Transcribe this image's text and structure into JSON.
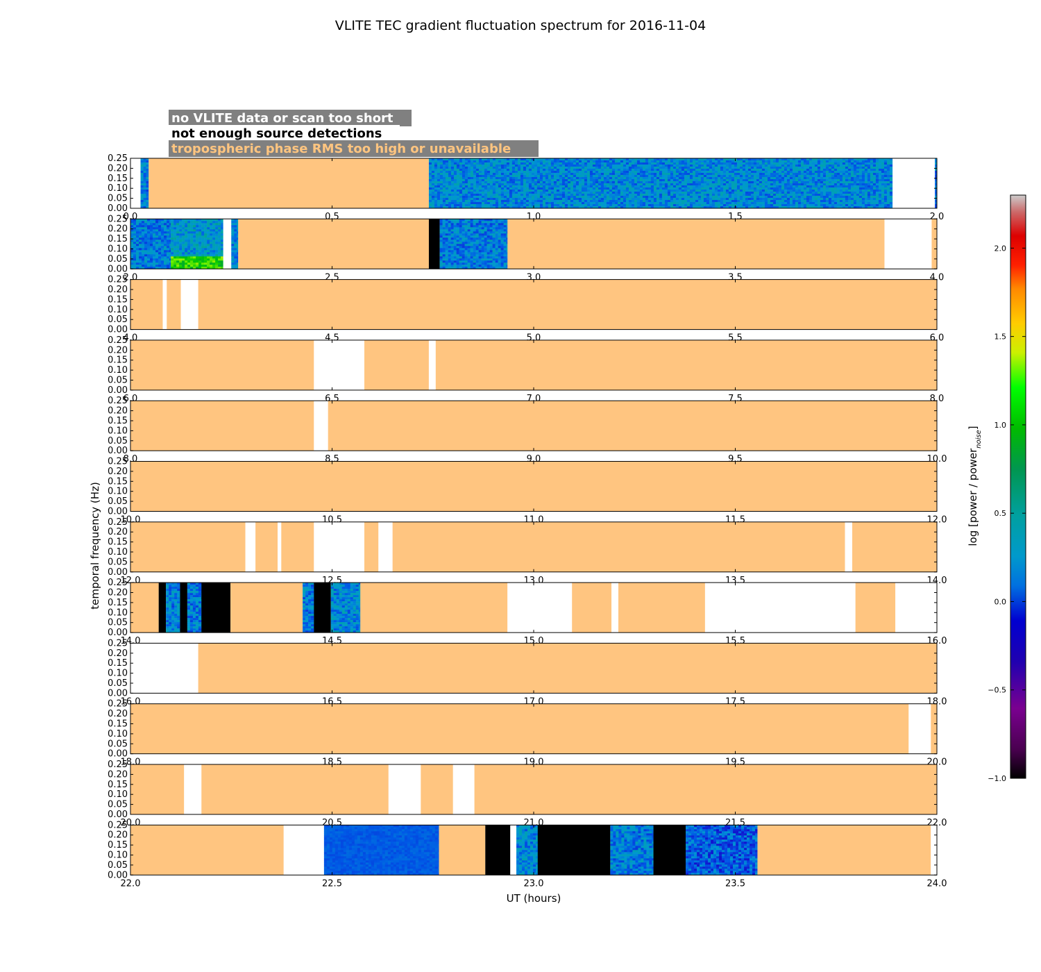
{
  "chart_data": {
    "type": "heatmap",
    "title": "VLITE TEC gradient fluctuation spectrum for 2016-11-04",
    "xlabel": "UT (hours)",
    "ylabel": "temporal frequency (Hz)",
    "ylim": [
      0,
      0.25
    ],
    "yticks": [
      "0.00",
      "0.05",
      "0.10",
      "0.15",
      "0.20",
      "0.25"
    ],
    "colorbar": {
      "label_main": "log [power / power",
      "label_sub": "noise",
      "label_end": "]",
      "range": [
        -1.0,
        2.3
      ],
      "ticks": [
        "−1.0",
        "−0.5",
        "0.0",
        "0.5",
        "1.0",
        "1.5",
        "2.0"
      ]
    },
    "legend": [
      {
        "label": "no VLITE data or scan too short",
        "color": "#ffffff"
      },
      {
        "label": "not enough source detections",
        "color": "#000000"
      },
      {
        "label": "tropospheric phase RMS too high or unavailable",
        "color": "#ffc580"
      }
    ],
    "colors": {
      "no_data": "#ffffff",
      "no_detections": "#000000",
      "tropo_bad": "#ffc580",
      "legend_bg": "#808080"
    },
    "panels": [
      {
        "xlim": [
          0,
          2
        ],
        "xticks": [
          "0.0",
          "0.5",
          "1.0",
          "1.5",
          "2.0"
        ],
        "segments": [
          {
            "s": 0,
            "e": 0.025,
            "k": "none"
          },
          {
            "s": 0.025,
            "e": 0.045,
            "k": "spec",
            "level": 0.15
          },
          {
            "s": 0.045,
            "e": 0.74,
            "k": "tropo"
          },
          {
            "s": 0.74,
            "e": 1.89,
            "k": "spec",
            "level": 0.2
          },
          {
            "s": 1.89,
            "e": 1.995,
            "k": "none"
          },
          {
            "s": 1.995,
            "e": 2.0,
            "k": "spec",
            "level": 0.1
          }
        ]
      },
      {
        "xlim": [
          2,
          4
        ],
        "xticks": [
          "2.0",
          "2.5",
          "3.0",
          "3.5",
          "4.0"
        ],
        "segments": [
          {
            "s": 2.0,
            "e": 2.1,
            "k": "spec",
            "level": 0.15
          },
          {
            "s": 2.1,
            "e": 2.23,
            "k": "spec",
            "level": 0.3,
            "hot": true
          },
          {
            "s": 2.23,
            "e": 2.25,
            "k": "none"
          },
          {
            "s": 2.25,
            "e": 2.267,
            "k": "spec",
            "level": 0.2
          },
          {
            "s": 2.267,
            "e": 2.74,
            "k": "tropo"
          },
          {
            "s": 2.74,
            "e": 2.767,
            "k": "black"
          },
          {
            "s": 2.767,
            "e": 2.935,
            "k": "spec",
            "level": 0.15
          },
          {
            "s": 2.935,
            "e": 3.87,
            "k": "tropo"
          },
          {
            "s": 3.87,
            "e": 3.987,
            "k": "none"
          },
          {
            "s": 3.987,
            "e": 4.0,
            "k": "tropo"
          }
        ]
      },
      {
        "xlim": [
          4,
          6
        ],
        "xticks": [
          "4.0",
          "4.5",
          "5.0",
          "5.5",
          "6.0"
        ],
        "segments": [
          {
            "s": 4.0,
            "e": 4.08,
            "k": "tropo"
          },
          {
            "s": 4.08,
            "e": 4.09,
            "k": "none"
          },
          {
            "s": 4.09,
            "e": 4.125,
            "k": "tropo"
          },
          {
            "s": 4.125,
            "e": 4.168,
            "k": "none"
          },
          {
            "s": 4.168,
            "e": 6.0,
            "k": "tropo"
          }
        ]
      },
      {
        "xlim": [
          6,
          8
        ],
        "xticks": [
          "6.0",
          "6.5",
          "7.0",
          "7.5",
          "8.0"
        ],
        "segments": [
          {
            "s": 6.0,
            "e": 6.455,
            "k": "tropo"
          },
          {
            "s": 6.455,
            "e": 6.58,
            "k": "none"
          },
          {
            "s": 6.58,
            "e": 6.74,
            "k": "tropo"
          },
          {
            "s": 6.74,
            "e": 6.757,
            "k": "none"
          },
          {
            "s": 6.757,
            "e": 8.0,
            "k": "tropo"
          }
        ]
      },
      {
        "xlim": [
          8,
          10
        ],
        "xticks": [
          "8.0",
          "8.5",
          "9.0",
          "9.5",
          "10.0"
        ],
        "segments": [
          {
            "s": 8.0,
            "e": 8.455,
            "k": "tropo"
          },
          {
            "s": 8.455,
            "e": 8.49,
            "k": "none"
          },
          {
            "s": 8.49,
            "e": 10.0,
            "k": "tropo"
          }
        ]
      },
      {
        "xlim": [
          10,
          12
        ],
        "xticks": [
          "10.0",
          "10.5",
          "11.0",
          "11.5",
          "12.0"
        ],
        "segments": [
          {
            "s": 10.0,
            "e": 12.0,
            "k": "tropo"
          }
        ]
      },
      {
        "xlim": [
          12,
          14
        ],
        "xticks": [
          "12.0",
          "12.5",
          "13.0",
          "13.5",
          "14.0"
        ],
        "segments": [
          {
            "s": 12.0,
            "e": 12.285,
            "k": "tropo"
          },
          {
            "s": 12.285,
            "e": 12.31,
            "k": "none"
          },
          {
            "s": 12.31,
            "e": 12.365,
            "k": "tropo"
          },
          {
            "s": 12.365,
            "e": 12.374,
            "k": "none"
          },
          {
            "s": 12.374,
            "e": 12.455,
            "k": "tropo"
          },
          {
            "s": 12.455,
            "e": 12.58,
            "k": "none"
          },
          {
            "s": 12.58,
            "e": 12.615,
            "k": "tropo"
          },
          {
            "s": 12.615,
            "e": 12.65,
            "k": "none"
          },
          {
            "s": 12.65,
            "e": 13.772,
            "k": "tropo"
          },
          {
            "s": 13.772,
            "e": 13.79,
            "k": "none"
          },
          {
            "s": 13.79,
            "e": 14.0,
            "k": "tropo"
          }
        ]
      },
      {
        "xlim": [
          14,
          16
        ],
        "xticks": [
          "14.0",
          "14.5",
          "15.0",
          "15.5",
          "16.0"
        ],
        "segments": [
          {
            "s": 14.0,
            "e": 14.07,
            "k": "tropo"
          },
          {
            "s": 14.07,
            "e": 14.088,
            "k": "black"
          },
          {
            "s": 14.088,
            "e": 14.123,
            "k": "spec",
            "level": 0.15
          },
          {
            "s": 14.123,
            "e": 14.141,
            "k": "black"
          },
          {
            "s": 14.141,
            "e": 14.176,
            "k": "spec",
            "level": 0.15
          },
          {
            "s": 14.176,
            "e": 14.248,
            "k": "black"
          },
          {
            "s": 14.248,
            "e": 14.427,
            "k": "tropo"
          },
          {
            "s": 14.427,
            "e": 14.455,
            "k": "spec",
            "level": 0.15
          },
          {
            "s": 14.455,
            "e": 14.497,
            "k": "black"
          },
          {
            "s": 14.497,
            "e": 14.57,
            "k": "spec",
            "level": 0.2
          },
          {
            "s": 14.57,
            "e": 14.935,
            "k": "tropo"
          },
          {
            "s": 14.935,
            "e": 15.095,
            "k": "none"
          },
          {
            "s": 15.095,
            "e": 15.193,
            "k": "tropo"
          },
          {
            "s": 15.193,
            "e": 15.21,
            "k": "none"
          },
          {
            "s": 15.21,
            "e": 15.425,
            "k": "tropo"
          },
          {
            "s": 15.425,
            "e": 15.798,
            "k": "none"
          },
          {
            "s": 15.798,
            "e": 15.897,
            "k": "tropo"
          },
          {
            "s": 15.897,
            "e": 16.0,
            "k": "none"
          }
        ]
      },
      {
        "xlim": [
          16,
          18
        ],
        "xticks": [
          "16.0",
          "16.5",
          "17.0",
          "17.5",
          "18.0"
        ],
        "segments": [
          {
            "s": 16.0,
            "e": 16.168,
            "k": "none"
          },
          {
            "s": 16.168,
            "e": 18.0,
            "k": "tropo"
          }
        ]
      },
      {
        "xlim": [
          18,
          20
        ],
        "xticks": [
          "18.0",
          "18.5",
          "19.0",
          "19.5",
          "20.0"
        ],
        "segments": [
          {
            "s": 18.0,
            "e": 19.93,
            "k": "tropo"
          },
          {
            "s": 19.93,
            "e": 19.985,
            "k": "none"
          },
          {
            "s": 19.985,
            "e": 20.0,
            "k": "tropo"
          }
        ]
      },
      {
        "xlim": [
          20,
          22
        ],
        "xticks": [
          "20.0",
          "20.5",
          "21.0",
          "21.5",
          "22.0"
        ],
        "segments": [
          {
            "s": 20.0,
            "e": 20.133,
            "k": "tropo"
          },
          {
            "s": 20.133,
            "e": 20.176,
            "k": "none"
          },
          {
            "s": 20.176,
            "e": 20.64,
            "k": "tropo"
          },
          {
            "s": 20.64,
            "e": 20.72,
            "k": "none"
          },
          {
            "s": 20.72,
            "e": 20.8,
            "k": "tropo"
          },
          {
            "s": 20.8,
            "e": 20.853,
            "k": "none"
          },
          {
            "s": 20.853,
            "e": 22.0,
            "k": "tropo"
          }
        ]
      },
      {
        "xlim": [
          22,
          24
        ],
        "xticks": [
          "22.0",
          "22.5",
          "23.0",
          "23.5",
          "24.0"
        ],
        "segments": [
          {
            "s": 22.0,
            "e": 22.38,
            "k": "tropo"
          },
          {
            "s": 22.38,
            "e": 22.48,
            "k": "none"
          },
          {
            "s": 22.48,
            "e": 22.765,
            "k": "spec",
            "level": 0.0,
            "smooth": true
          },
          {
            "s": 22.765,
            "e": 22.88,
            "k": "tropo"
          },
          {
            "s": 22.88,
            "e": 22.942,
            "k": "black"
          },
          {
            "s": 22.942,
            "e": 22.957,
            "k": "none"
          },
          {
            "s": 22.957,
            "e": 23.01,
            "k": "spec",
            "level": 0.2
          },
          {
            "s": 23.01,
            "e": 23.19,
            "k": "black"
          },
          {
            "s": 23.19,
            "e": 23.297,
            "k": "spec",
            "level": 0.15
          },
          {
            "s": 23.297,
            "e": 23.377,
            "k": "black"
          },
          {
            "s": 23.377,
            "e": 23.555,
            "k": "spec",
            "level": 0.0
          },
          {
            "s": 23.555,
            "e": 23.985,
            "k": "tropo"
          },
          {
            "s": 23.985,
            "e": 24.0,
            "k": "none"
          }
        ]
      }
    ]
  }
}
